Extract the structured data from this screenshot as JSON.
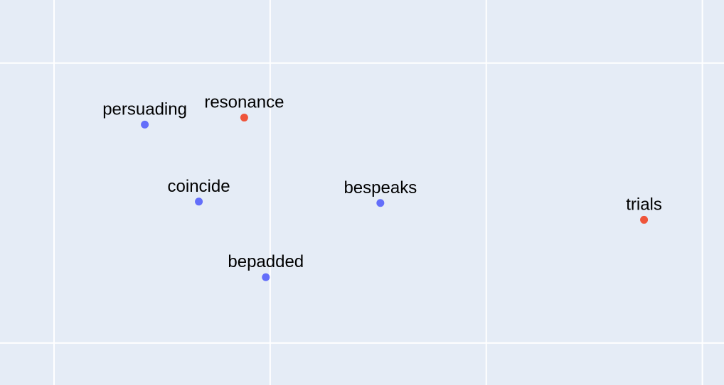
{
  "chart_data": {
    "type": "scatter",
    "title": "",
    "xlabel": "",
    "ylabel": "",
    "grid": true,
    "legend": "none",
    "xlim": [
      -1.25,
      2.1
    ],
    "ylim": [
      -1.8,
      0.95
    ],
    "x_gridlines": [
      -1,
      0,
      1,
      2
    ],
    "y_gridlines": [
      -1.5,
      0.5
    ],
    "colors": {
      "background": "#e5ecf6",
      "grid": "#ffffff",
      "blue": "#636efa",
      "red": "#ef553b"
    },
    "points": [
      {
        "label": "persuading",
        "x": -0.58,
        "y": 0.06,
        "color": "#636efa"
      },
      {
        "label": "resonance",
        "x": -0.12,
        "y": 0.11,
        "color": "#ef553b"
      },
      {
        "label": "coincide",
        "x": -0.33,
        "y": -0.49,
        "color": "#636efa"
      },
      {
        "label": "bespeaks",
        "x": 0.51,
        "y": -0.5,
        "color": "#636efa"
      },
      {
        "label": "bepadded",
        "x": -0.02,
        "y": -1.03,
        "color": "#636efa"
      },
      {
        "label": "trials",
        "x": 1.73,
        "y": -0.62,
        "color": "#ef553b"
      }
    ]
  }
}
